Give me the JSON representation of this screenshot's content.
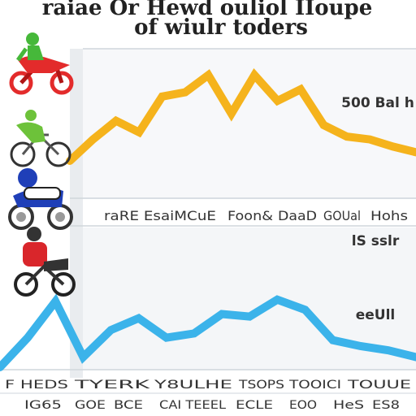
{
  "title_line1": "raiae Or Hewd ouliol IIoupe",
  "title_line2": "of wiulr toders",
  "icons": [
    "motorcycle-icon",
    "bicycle-icon",
    "scooter-icon",
    "motorbike-icon"
  ],
  "colors": {
    "series_top": "#f5b31c",
    "series_bottom": "#3bb3ea",
    "rider1": "#e32b2b",
    "rider2": "#6dc23a",
    "rider3": "#1f3fb8",
    "rider4": "#d9262b",
    "panel": "#f4f6f8",
    "grid": "#cfd6dc"
  },
  "chart_data": [
    {
      "type": "line",
      "series": [
        {
          "color": "#f5b31c",
          "points": [
            [
              0,
              25
            ],
            [
              1,
              40
            ],
            [
              2,
              53
            ],
            [
              3,
              45
            ],
            [
              4,
              70
            ],
            [
              5,
              73
            ],
            [
              6,
              85
            ],
            [
              7,
              58
            ],
            [
              8,
              85
            ],
            [
              9,
              67
            ],
            [
              10,
              75
            ],
            [
              11,
              50
            ],
            [
              12,
              42
            ],
            [
              13,
              40
            ],
            [
              14,
              35
            ],
            [
              15,
              31
            ]
          ]
        }
      ],
      "ylim": [
        0,
        100
      ],
      "xlim": [
        0,
        15
      ],
      "annotations": [
        "500 Bal h"
      ],
      "tick_labels": [
        "raRE EsaiMCuE",
        "Foon&",
        "DaaD",
        "GOUal",
        "Hohs"
      ]
    },
    {
      "type": "line",
      "series": [
        {
          "color": "#3bb3ea",
          "points": [
            [
              0,
              0
            ],
            [
              1,
              35
            ],
            [
              2,
              78
            ],
            [
              3,
              12
            ],
            [
              4,
              44
            ],
            [
              5,
              58
            ],
            [
              6,
              35
            ],
            [
              7,
              40
            ],
            [
              8,
              63
            ],
            [
              9,
              60
            ],
            [
              10,
              80
            ],
            [
              11,
              68
            ],
            [
              12,
              32
            ],
            [
              13,
              25
            ],
            [
              14,
              20
            ],
            [
              15,
              12
            ]
          ]
        }
      ],
      "ylim": [
        0,
        100
      ],
      "xlim": [
        0,
        15
      ],
      "annotations": [
        "lS sslr",
        "eeUll"
      ],
      "tick_labels_row1": [
        "F HEDS",
        "TYERK",
        "Y8ULHE",
        "TSOPS",
        "TOOICI",
        "TOUUE"
      ],
      "tick_labels_row2": [
        "IG65",
        "GOE",
        "BCE",
        "CAI TEEEL",
        "ECLE",
        "EOO",
        "HeS",
        "ES8"
      ]
    }
  ]
}
